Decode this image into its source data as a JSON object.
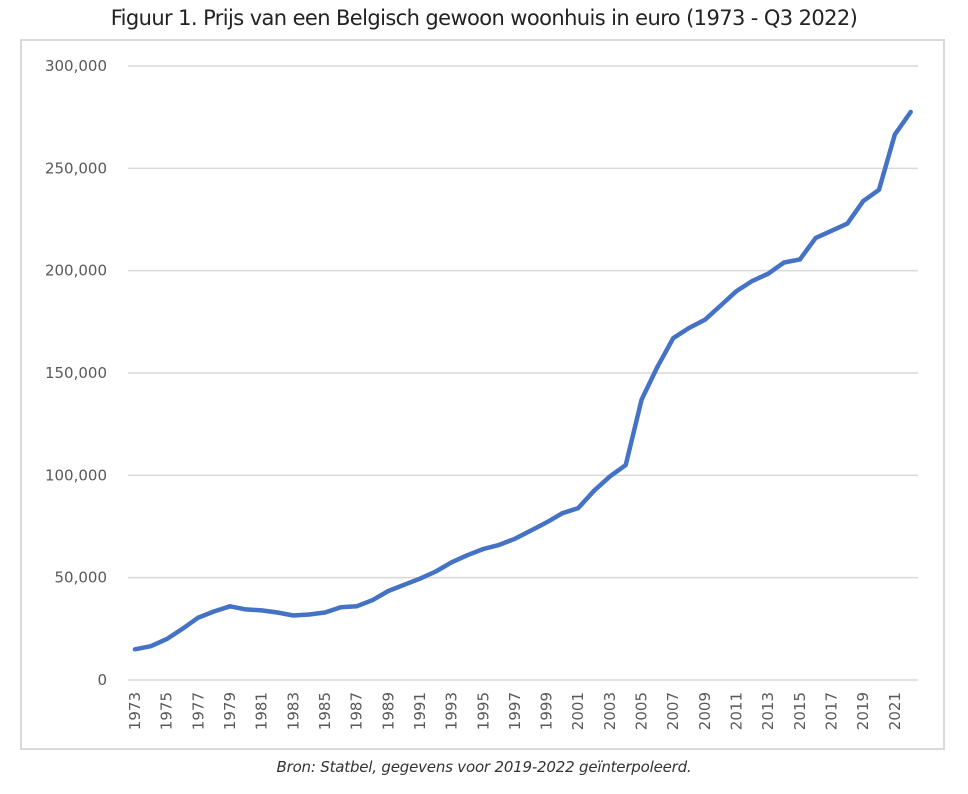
{
  "chart_data": {
    "type": "line",
    "title": "Figuur 1. Prijs van een Belgisch gewoon woonhuis in euro (1973 - Q3 2022)",
    "xlabel": "",
    "ylabel": "",
    "ylim": [
      0,
      300000
    ],
    "yticks": [
      0,
      50000,
      100000,
      150000,
      200000,
      250000,
      300000
    ],
    "ytick_labels": [
      "0",
      "50,000",
      "100,000",
      "150,000",
      "200,000",
      "250,000",
      "300,000"
    ],
    "xtick_labels": [
      "1973",
      "1975",
      "1977",
      "1979",
      "1981",
      "1983",
      "1985",
      "1987",
      "1989",
      "1991",
      "1993",
      "1995",
      "1997",
      "1999",
      "2001",
      "2003",
      "2005",
      "2007",
      "2009",
      "2011",
      "2013",
      "2015",
      "2017",
      "2019",
      "2021"
    ],
    "grid": true,
    "color": "#4472c4",
    "x": [
      1973,
      1974,
      1975,
      1976,
      1977,
      1978,
      1979,
      1980,
      1981,
      1982,
      1983,
      1984,
      1985,
      1986,
      1987,
      1988,
      1989,
      1990,
      1991,
      1992,
      1993,
      1994,
      1995,
      1996,
      1997,
      1998,
      1999,
      2000,
      2001,
      2002,
      2003,
      2004,
      2005,
      2006,
      2007,
      2008,
      2009,
      2010,
      2011,
      2012,
      2013,
      2014,
      2015,
      2016,
      2017,
      2018,
      2019,
      2020,
      2021,
      2022
    ],
    "series": [
      {
        "name": "Prijs gewoon woonhuis",
        "values": [
          15000,
          16500,
          20000,
          25000,
          30500,
          33500,
          36000,
          34500,
          34000,
          33000,
          31500,
          32000,
          33000,
          35500,
          36000,
          39000,
          43500,
          46500,
          49500,
          53000,
          57500,
          61000,
          64000,
          66000,
          69000,
          73000,
          77000,
          81500,
          84000,
          92500,
          99500,
          105000,
          137000,
          153000,
          167000,
          172000,
          176000,
          183000,
          190000,
          195000,
          198500,
          204000,
          205500,
          216000,
          219500,
          223000,
          234000,
          239500,
          266500,
          277500
        ]
      }
    ]
  },
  "footer": {
    "source": "Bron: Statbel, gegevens voor 2019-2022 geïnterpoleerd."
  }
}
